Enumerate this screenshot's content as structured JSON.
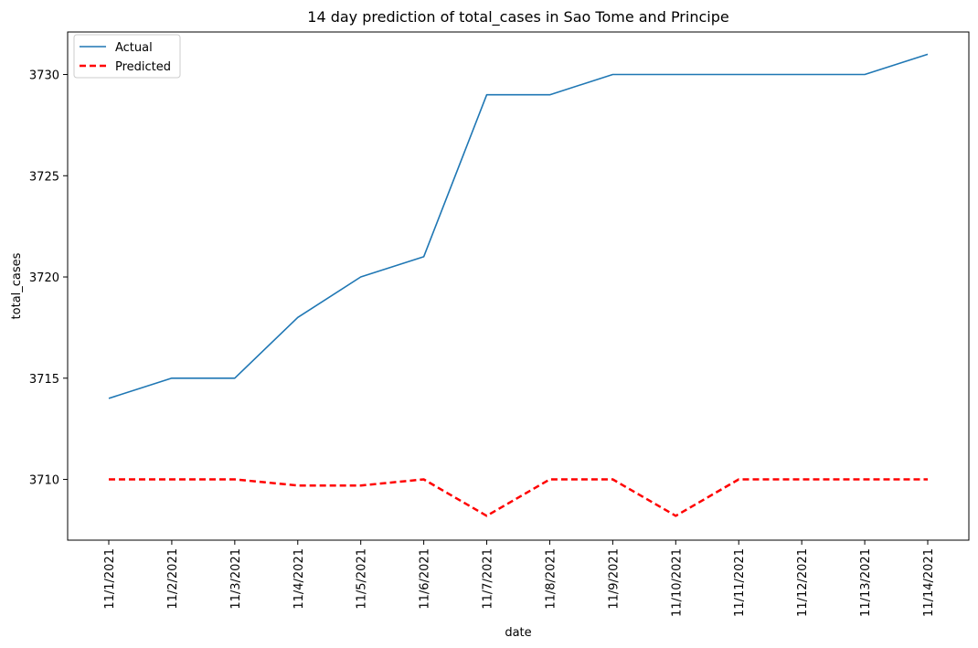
{
  "chart_data": {
    "type": "line",
    "title": "14 day prediction of total_cases in Sao Tome and Principe",
    "xlabel": "date",
    "ylabel": "total_cases",
    "categories": [
      "11/1/2021",
      "11/2/2021",
      "11/3/2021",
      "11/4/2021",
      "11/5/2021",
      "11/6/2021",
      "11/7/2021",
      "11/8/2021",
      "11/9/2021",
      "11/10/2021",
      "11/11/2021",
      "11/12/2021",
      "11/13/2021",
      "11/14/2021"
    ],
    "yticks": [
      3710,
      3715,
      3720,
      3725,
      3730
    ],
    "ylim": [
      3707.0,
      3732.1
    ],
    "grid": false,
    "legend_position": "top-left",
    "series": [
      {
        "name": "Actual",
        "color": "#1f77b4",
        "style": "solid",
        "values": [
          3714,
          3715,
          3715,
          3718,
          3720,
          3721,
          3729,
          3729,
          3730,
          3730,
          3730,
          3730,
          3730,
          3731
        ]
      },
      {
        "name": "Predicted",
        "color": "#ff0000",
        "style": "dashed",
        "values": [
          3710.0,
          3710.0,
          3710.0,
          3709.7,
          3709.7,
          3710.0,
          3708.2,
          3710.0,
          3710.0,
          3708.2,
          3710.0,
          3710.0,
          3710.0,
          3710.0
        ]
      }
    ]
  }
}
